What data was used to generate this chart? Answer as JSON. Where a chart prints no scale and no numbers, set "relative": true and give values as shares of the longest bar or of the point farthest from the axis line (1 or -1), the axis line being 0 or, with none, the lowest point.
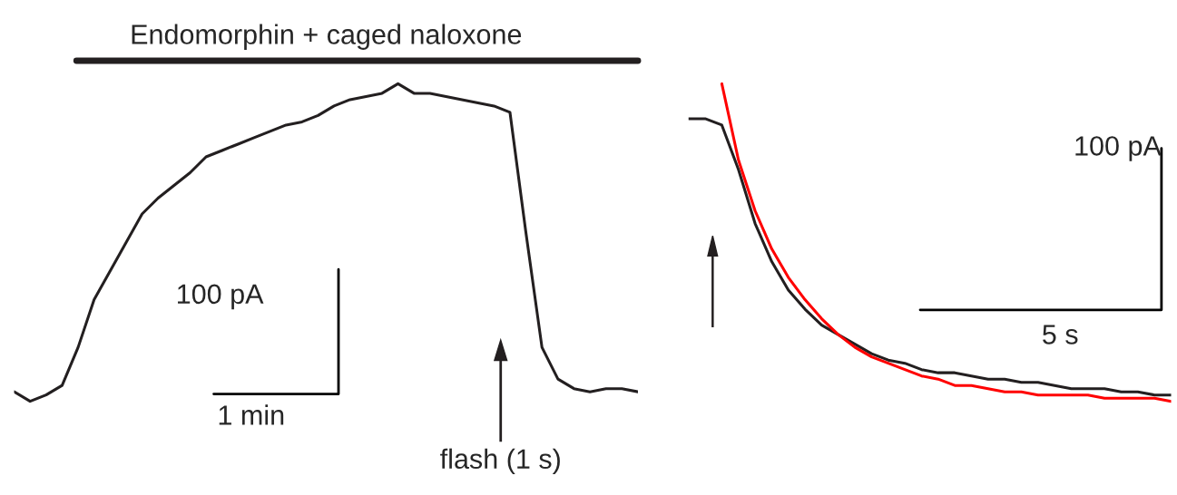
{
  "chart_data": [
    {
      "type": "line",
      "relative": true,
      "title": "Endomorphin + caged naloxone",
      "categories": [
        null,
        null,
        null,
        null,
        null,
        null,
        null,
        null,
        null,
        null,
        null,
        null,
        null,
        null,
        null,
        null,
        null,
        null,
        null,
        null,
        null,
        null,
        null,
        null,
        null,
        null,
        null,
        null,
        null,
        null,
        null,
        null,
        null,
        null,
        null,
        null,
        null,
        null,
        null,
        null
      ],
      "series": [
        {
          "color": "#231f20",
          "values": [
            0.03,
            0.0,
            0.02,
            0.05,
            0.17,
            0.32,
            0.41,
            0.5,
            0.59,
            0.64,
            0.68,
            0.72,
            0.77,
            0.79,
            0.81,
            0.83,
            0.85,
            0.87,
            0.88,
            0.9,
            0.93,
            0.95,
            0.96,
            0.97,
            1.0,
            0.97,
            0.97,
            0.96,
            0.95,
            0.94,
            0.93,
            0.91,
            0.53,
            0.17,
            0.07,
            0.04,
            0.03,
            0.04,
            0.04,
            0.03
          ]
        }
      ],
      "annotations": [
        "100 pA",
        "1 min",
        "flash (1 s)"
      ]
    },
    {
      "type": "line",
      "relative": true,
      "categories": [
        null,
        null,
        null,
        null,
        null,
        null,
        null,
        null,
        null,
        null,
        null,
        null,
        null,
        null,
        null,
        null,
        null,
        null,
        null,
        null,
        null,
        null,
        null,
        null,
        null,
        null,
        null,
        null,
        null,
        null
      ],
      "series": [
        {
          "color": "#231f20",
          "values": [
            0.89,
            0.89,
            0.87,
            0.73,
            0.56,
            0.44,
            0.35,
            0.29,
            0.24,
            0.21,
            0.18,
            0.15,
            0.13,
            0.12,
            0.1,
            0.09,
            0.09,
            0.08,
            0.07,
            0.07,
            0.06,
            0.06,
            0.05,
            0.04,
            0.04,
            0.04,
            0.03,
            0.03,
            0.02,
            0.02
          ]
        },
        {
          "color": "#ff0000",
          "values": [
            null,
            null,
            1.0,
            0.76,
            0.6,
            0.48,
            0.39,
            0.32,
            0.26,
            0.21,
            0.17,
            0.14,
            0.12,
            0.1,
            0.08,
            0.07,
            0.05,
            0.05,
            0.04,
            0.03,
            0.03,
            0.02,
            0.02,
            0.02,
            0.02,
            0.01,
            0.01,
            0.01,
            0.01,
            0.0
          ]
        }
      ],
      "annotations": [
        "100 pA",
        "5 s"
      ]
    }
  ]
}
